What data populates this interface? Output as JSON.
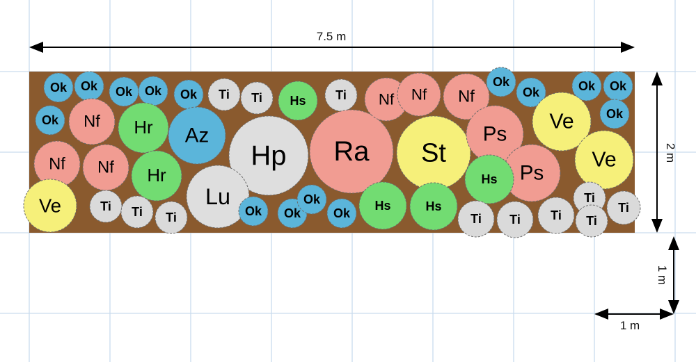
{
  "dimensions": {
    "width_label": "7.5 m",
    "height_label": "2 m",
    "scale_vertical_label": "1 m",
    "scale_horizontal_label": "1 m"
  },
  "colors": {
    "soil": "#8a5a2e",
    "grid": "#c9dcee",
    "Ok": "#5bb5da",
    "Az": "#5bb5da",
    "Ti": "#dadada",
    "Hp": "#dedede",
    "Lu": "#dedede",
    "Hs": "#72dc72",
    "Hr": "#72dc72",
    "Nf": "#f19c92",
    "Ps": "#f19c92",
    "Ra": "#f19c92",
    "Ve": "#f6f07a",
    "St": "#f6f07a"
  },
  "plants": [
    {
      "label": "Ok"
    },
    {
      "label": "Ok"
    },
    {
      "label": "Ok"
    },
    {
      "label": "Ok"
    },
    {
      "label": "Ok"
    },
    {
      "label": "Ti"
    },
    {
      "label": "Ti"
    },
    {
      "label": "Hs"
    },
    {
      "label": "Ti"
    },
    {
      "label": "Ok"
    },
    {
      "label": "Nf"
    },
    {
      "label": "Hr"
    },
    {
      "label": "Az"
    },
    {
      "label": "Hp"
    },
    {
      "label": "Ra"
    },
    {
      "label": "Nf"
    },
    {
      "label": "Nf"
    },
    {
      "label": "Hr"
    },
    {
      "label": "Lu"
    },
    {
      "label": "Ve"
    },
    {
      "label": "Ti"
    },
    {
      "label": "Ti"
    },
    {
      "label": "Ti"
    },
    {
      "label": "Ok"
    },
    {
      "label": "Ok"
    },
    {
      "label": "Ok"
    },
    {
      "label": "Ok"
    },
    {
      "label": "Nf"
    },
    {
      "label": "Nf"
    },
    {
      "label": "Nf"
    },
    {
      "label": "Ok"
    },
    {
      "label": "Ok"
    },
    {
      "label": "Ok"
    },
    {
      "label": "Ok"
    },
    {
      "label": "Ok"
    },
    {
      "label": "St"
    },
    {
      "label": "Ps"
    },
    {
      "label": "Ve"
    },
    {
      "label": "Ve"
    },
    {
      "label": "Ps"
    },
    {
      "label": "Hs"
    },
    {
      "label": "Hs"
    },
    {
      "label": "Hs"
    },
    {
      "label": "Ti"
    },
    {
      "label": "Ti"
    },
    {
      "label": "Ti"
    },
    {
      "label": "Ti"
    },
    {
      "label": "Ti"
    },
    {
      "label": "Ti"
    }
  ]
}
